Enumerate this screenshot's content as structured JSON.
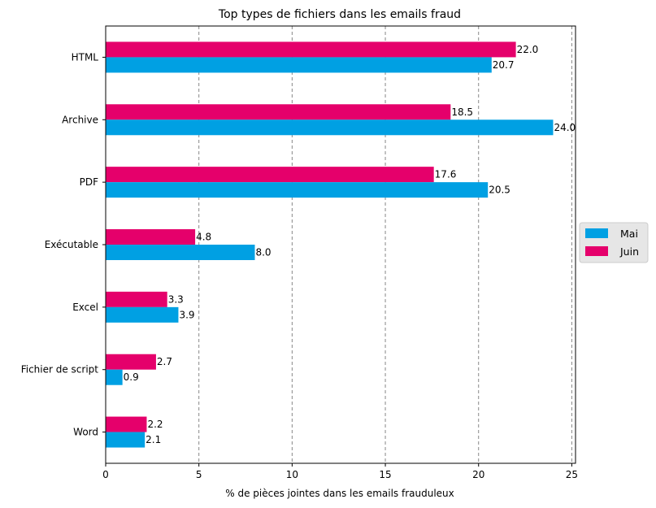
{
  "chart_data": {
    "type": "bar",
    "orientation": "horizontal",
    "title": "Top types de fichiers dans les emails fraud",
    "xlabel": "% de pièces jointes dans les emails frauduleux",
    "ylabel": "",
    "xlim": [
      0,
      25.2
    ],
    "xticks": [
      0,
      5,
      10,
      15,
      20,
      25
    ],
    "grid": "vertical dashed",
    "legend": "right",
    "categories": [
      "HTML",
      "Archive",
      "PDF",
      "Exécutable",
      "Excel",
      "Fichier de script",
      "Word"
    ],
    "series": [
      {
        "name": "Mai",
        "color": "#00a0e3",
        "values": [
          20.7,
          24.0,
          20.5,
          8.0,
          3.9,
          0.9,
          2.1
        ],
        "labels": [
          "20.7",
          "24.0",
          "20.5",
          "8.0",
          "3.9",
          "0.9",
          "2.1"
        ]
      },
      {
        "name": "Juin",
        "color": "#e5006b",
        "values": [
          22.0,
          18.5,
          17.6,
          4.8,
          3.3,
          2.7,
          2.2
        ],
        "labels": [
          "22.0",
          "18.5",
          "17.6",
          "4.8",
          "3.3",
          "2.7",
          "2.2"
        ]
      }
    ]
  }
}
